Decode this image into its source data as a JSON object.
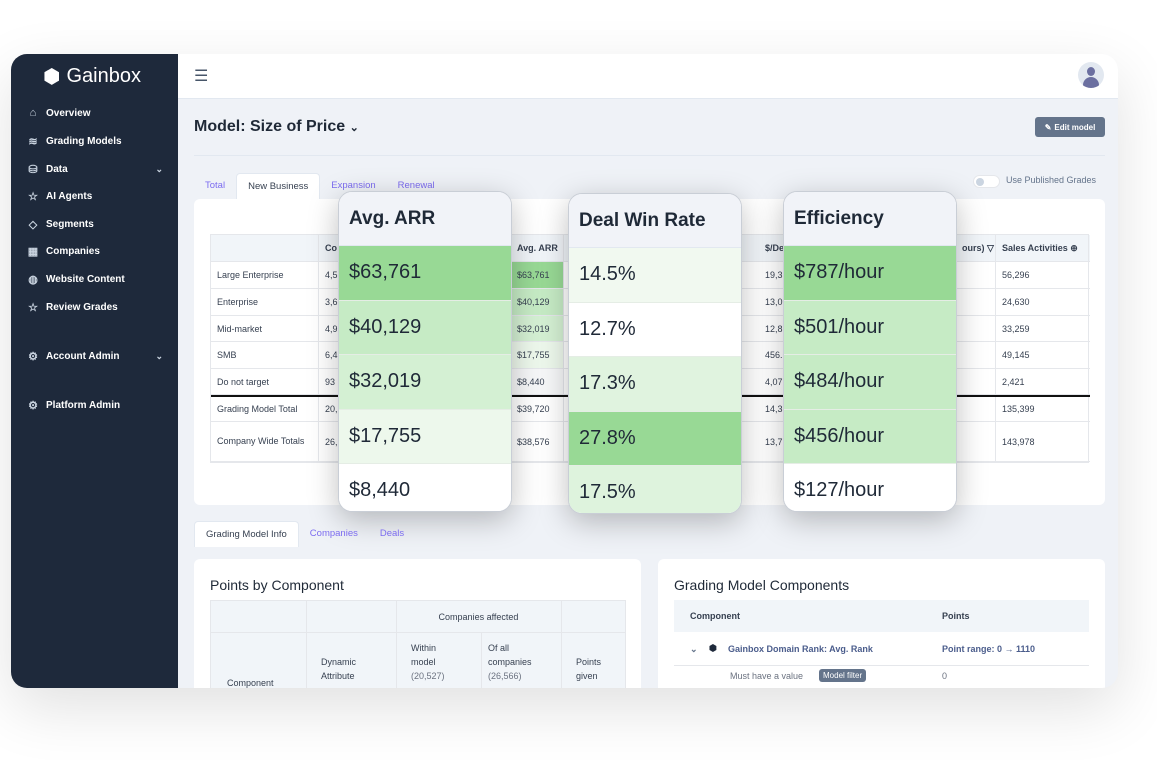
{
  "app": {
    "name": "Gainbox"
  },
  "sidebar": {
    "items": [
      {
        "label": "Overview",
        "icon": "home-icon"
      },
      {
        "label": "Grading Models",
        "icon": "layers-icon"
      },
      {
        "label": "Data",
        "icon": "database-icon",
        "has_submenu": true
      },
      {
        "label": "AI Agents",
        "icon": "sparkle-star-icon"
      },
      {
        "label": "Segments",
        "icon": "tag-icon"
      },
      {
        "label": "Companies",
        "icon": "building-search-icon"
      },
      {
        "label": "Website Content",
        "icon": "globe-icon"
      },
      {
        "label": "Review Grades",
        "icon": "star-icon"
      },
      {
        "label": "Account Admin",
        "icon": "gears-icon",
        "has_submenu": true
      },
      {
        "label": "Platform Admin",
        "icon": "gears-icon"
      }
    ]
  },
  "header": {
    "title": "Model: Size of Price",
    "edit_label": "Edit model"
  },
  "deal_tabs": [
    "Total",
    "New Business",
    "Expansion",
    "Renewal"
  ],
  "deal_tab_active": "New Business",
  "toggle": {
    "label": "Use Published Grades",
    "on": false
  },
  "table": {
    "headers": [
      "",
      "Co",
      "Avg. ARR",
      "$/De",
      "ours) ▽",
      "Sales Activities ⊕"
    ],
    "rows": [
      [
        "Large Enterprise",
        "4,5",
        "$63,761",
        "19,3",
        "",
        "56,296"
      ],
      [
        "Enterprise",
        "3,6",
        "$40,129",
        "13,0",
        "",
        "24,630"
      ],
      [
        "Mid-market",
        "4,9",
        "$32,019",
        "12,8",
        "",
        "33,259"
      ],
      [
        "SMB",
        "6,4",
        "$17,755",
        "456.",
        "",
        "49,145"
      ],
      [
        "Do not target",
        "93",
        "$8,440",
        "4,07",
        "",
        "2,421"
      ],
      [
        "Grading Model Total",
        "20,",
        "$39,720",
        "14,3",
        "",
        "135,399"
      ],
      [
        "Company Wide Totals",
        "26,",
        "$38,576",
        "13,7",
        "",
        "143,978"
      ]
    ]
  },
  "highlights": [
    {
      "title": "Avg. ARR",
      "values": [
        "$63,761",
        "$40,129",
        "$32,019",
        "$17,755",
        "$8,440"
      ],
      "colors": [
        "#98d995",
        "#c6ebc5",
        "#d4f0d3",
        "#edf8ec",
        "#ffffff"
      ]
    },
    {
      "title": "Deal Win Rate",
      "values": [
        "14.5%",
        "12.7%",
        "17.3%",
        "27.8%",
        "17.5%"
      ],
      "colors": [
        "#f1f9f0",
        "#ffffff",
        "#e0f3df",
        "#98d995",
        "#def3dd"
      ]
    },
    {
      "title": "Efficiency",
      "values": [
        "$787/hour",
        "$501/hour",
        "$484/hour",
        "$456/hour",
        "$127/hour"
      ],
      "colors": [
        "#98d995",
        "#c6ebc5",
        "#c6ebc5",
        "#c6ebc5",
        "#ffffff"
      ]
    }
  ],
  "info_tabs": [
    "Grading Model Info",
    "Companies",
    "Deals"
  ],
  "points_by_component": {
    "title": "Points by Component",
    "group_header": "Companies affected",
    "columns": [
      "Component",
      "Dynamic Attribute",
      "Within model",
      "(20,527)",
      "Of all companies",
      "(26,566)",
      "Points given"
    ]
  },
  "components": {
    "title": "Grading Model Components",
    "columns": [
      "Component",
      "Points"
    ],
    "rows": [
      {
        "name": "Gainbox Domain Rank: Avg. Rank",
        "points": "Point range: 0 → 1110"
      },
      {
        "name": "Must have a value",
        "badge": "Model filter",
        "points": "0"
      }
    ]
  }
}
